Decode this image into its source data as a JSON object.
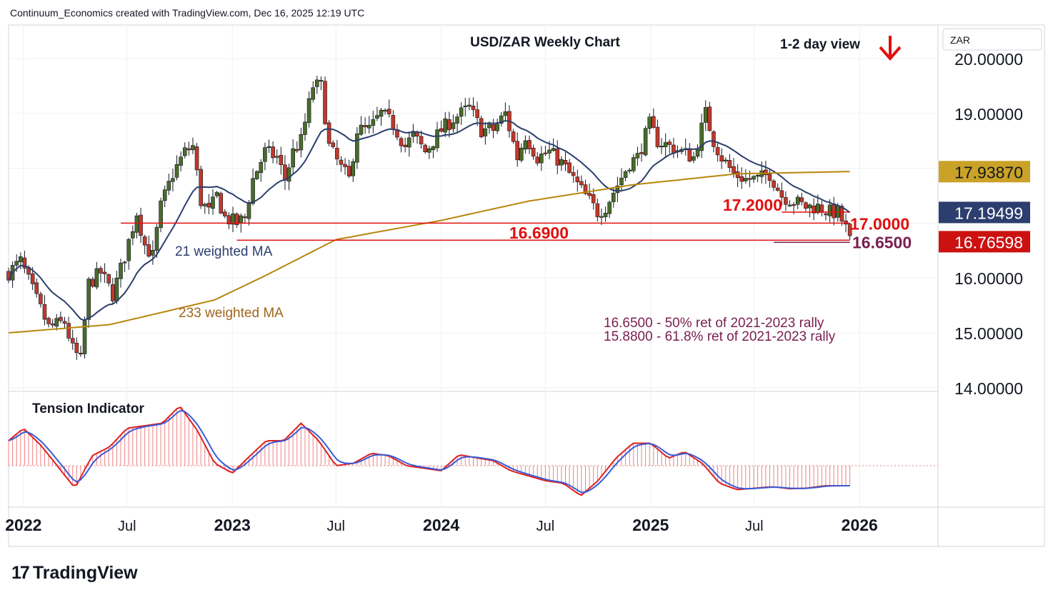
{
  "header": "Continuum_Economics created with TradingView.com, Dec 16, 2025 12:19 UTC",
  "brand": "TradingView",
  "logo_glyph": "17",
  "colors": {
    "up": "#4b6b2a",
    "down": "#c0392b",
    "ma21": "#2c3e6e",
    "ma233": "#b8860b",
    "level": "#e01010",
    "fib": "#7a1f4f",
    "tension_fast": "#e02020",
    "tension_slow": "#3a5bd6"
  },
  "chart_data": {
    "type": "candlestick",
    "title": "USD/ZAR Weekly Chart",
    "view_label": "1-2 day view",
    "view_arrow": "down-arrow-icon",
    "currency_label": "ZAR",
    "y_ticks": [
      "20.00000",
      "19.00000",
      "16.00000",
      "15.00000",
      "14.00000"
    ],
    "y_tick_values": [
      20,
      19,
      16,
      15,
      14
    ],
    "ylim": [
      13.9,
      20.6
    ],
    "x_tick_labels": [
      "2022",
      "Jul",
      "2023",
      "Jul",
      "2024",
      "Jul",
      "2025",
      "Jul",
      "2026"
    ],
    "x_tick_dates": [
      "2022-01-01",
      "2022-07-01",
      "2023-01-01",
      "2023-07-01",
      "2024-01-01",
      "2024-07-01",
      "2025-01-01",
      "2025-07-01",
      "2026-01-01"
    ],
    "x_range": [
      "2021-12-06",
      "2026-05-18"
    ],
    "price_tags": [
      {
        "label": "17.93870",
        "value": 17.9387,
        "style": "ma233"
      },
      {
        "label": "17.19499",
        "value": 17.19499,
        "style": "ma21"
      },
      {
        "label": "16.76598",
        "value": 16.76598,
        "style": "last"
      }
    ],
    "levels": [
      {
        "label": "17.2000",
        "value": 17.2,
        "from": "2025-08-18",
        "to": "2025-12-15"
      },
      {
        "label": "17.0000",
        "value": 17.0,
        "from": "2022-06-20",
        "to": "2025-12-15"
      },
      {
        "label": "16.6900",
        "value": 16.69,
        "from": "2023-01-09",
        "to": "2025-12-15"
      }
    ],
    "fib_line": {
      "label": "16.6500",
      "value": 16.65,
      "from": "2025-08-04",
      "to": "2025-12-15"
    },
    "ma_labels": {
      "ma21": "21 weighted MA",
      "ma233": "233 weighted MA"
    },
    "notes": [
      "16.6500 - 50% ret of 2021-2023 rally",
      "15.8800 - 61.8% ret of 2021-2023 rally"
    ],
    "indicator_title": "Tension Indicator",
    "anchors": [
      [
        "2021-12-06",
        16.1
      ],
      [
        "2021-12-27",
        16.3
      ],
      [
        "2022-01-24",
        15.6
      ],
      [
        "2022-02-14",
        15.1
      ],
      [
        "2022-03-14",
        15.2
      ],
      [
        "2022-03-28",
        14.7
      ],
      [
        "2022-04-11",
        14.5
      ],
      [
        "2022-04-25",
        15.9
      ],
      [
        "2022-05-16",
        16.1
      ],
      [
        "2022-06-06",
        15.7
      ],
      [
        "2022-06-27",
        16.4
      ],
      [
        "2022-07-18",
        17.2
      ],
      [
        "2022-08-01",
        16.6
      ],
      [
        "2022-08-15",
        16.4
      ],
      [
        "2022-08-29",
        17.3
      ],
      [
        "2022-09-19",
        17.9
      ],
      [
        "2022-10-10",
        18.3
      ],
      [
        "2022-10-24",
        18.4
      ],
      [
        "2022-11-07",
        17.4
      ],
      [
        "2022-11-21",
        17.2
      ],
      [
        "2022-12-05",
        17.5
      ],
      [
        "2022-12-19",
        17.1
      ],
      [
        "2023-01-09",
        17.0
      ],
      [
        "2023-01-23",
        17.1
      ],
      [
        "2023-02-06",
        17.8
      ],
      [
        "2023-02-27",
        18.3
      ],
      [
        "2023-03-20",
        18.2
      ],
      [
        "2023-04-03",
        17.8
      ],
      [
        "2023-04-17",
        18.3
      ],
      [
        "2023-05-01",
        18.5
      ],
      [
        "2023-05-22",
        19.5
      ],
      [
        "2023-06-05",
        19.5
      ],
      [
        "2023-06-19",
        18.4
      ],
      [
        "2023-07-10",
        18.0
      ],
      [
        "2023-07-24",
        17.8
      ],
      [
        "2023-08-07",
        18.7
      ],
      [
        "2023-08-28",
        18.7
      ],
      [
        "2023-09-18",
        19.0
      ],
      [
        "2023-10-09",
        18.8
      ],
      [
        "2023-10-30",
        18.4
      ],
      [
        "2023-11-13",
        18.6
      ],
      [
        "2023-12-04",
        18.3
      ],
      [
        "2024-01-01",
        18.7
      ],
      [
        "2024-01-22",
        18.9
      ],
      [
        "2024-02-19",
        19.1
      ],
      [
        "2024-03-11",
        18.7
      ],
      [
        "2024-04-01",
        18.7
      ],
      [
        "2024-04-22",
        19.0
      ],
      [
        "2024-05-13",
        18.2
      ],
      [
        "2024-05-27",
        18.6
      ],
      [
        "2024-06-17",
        18.2
      ],
      [
        "2024-07-08",
        18.3
      ],
      [
        "2024-07-29",
        18.1
      ],
      [
        "2024-08-19",
        17.8
      ],
      [
        "2024-09-09",
        17.5
      ],
      [
        "2024-09-30",
        17.2
      ],
      [
        "2024-10-14",
        17.3
      ],
      [
        "2024-11-04",
        17.7
      ],
      [
        "2024-11-25",
        18.1
      ],
      [
        "2024-12-09",
        18.2
      ],
      [
        "2024-12-30",
        18.8
      ],
      [
        "2025-01-13",
        18.5
      ],
      [
        "2025-02-03",
        18.4
      ],
      [
        "2025-02-24",
        18.3
      ],
      [
        "2025-03-17",
        18.2
      ],
      [
        "2025-04-07",
        19.0
      ],
      [
        "2025-04-21",
        18.5
      ],
      [
        "2025-05-05",
        18.2
      ],
      [
        "2025-05-26",
        17.9
      ],
      [
        "2025-06-16",
        17.8
      ],
      [
        "2025-07-07",
        17.8
      ],
      [
        "2025-07-28",
        17.9
      ],
      [
        "2025-08-18",
        17.5
      ],
      [
        "2025-09-08",
        17.4
      ],
      [
        "2025-09-29",
        17.3
      ],
      [
        "2025-10-20",
        17.3
      ],
      [
        "2025-11-10",
        17.2
      ],
      [
        "2025-11-24",
        17.2
      ],
      [
        "2025-12-08",
        16.9
      ],
      [
        "2025-12-15",
        16.77
      ]
    ],
    "ma233_anchors": [
      [
        "2021-12-06",
        15.0
      ],
      [
        "2022-06-01",
        15.15
      ],
      [
        "2022-12-01",
        15.6
      ],
      [
        "2023-03-01",
        16.05
      ],
      [
        "2023-07-01",
        16.7
      ],
      [
        "2024-01-01",
        17.05
      ],
      [
        "2024-06-01",
        17.4
      ],
      [
        "2024-12-01",
        17.7
      ],
      [
        "2025-06-01",
        17.9
      ],
      [
        "2025-12-15",
        17.94
      ]
    ],
    "tension_anchors": [
      [
        "2021-12-06",
        0.5
      ],
      [
        "2022-01-01",
        0.75
      ],
      [
        "2022-02-01",
        0.4
      ],
      [
        "2022-03-01",
        0.0
      ],
      [
        "2022-04-01",
        -0.45
      ],
      [
        "2022-05-01",
        0.2
      ],
      [
        "2022-06-01",
        0.38
      ],
      [
        "2022-07-01",
        0.75
      ],
      [
        "2022-08-01",
        0.8
      ],
      [
        "2022-09-01",
        0.85
      ],
      [
        "2022-10-01",
        1.2
      ],
      [
        "2022-11-01",
        0.7
      ],
      [
        "2022-12-01",
        0.05
      ],
      [
        "2023-01-01",
        -0.15
      ],
      [
        "2023-02-01",
        0.2
      ],
      [
        "2023-03-01",
        0.5
      ],
      [
        "2023-04-01",
        0.5
      ],
      [
        "2023-05-01",
        0.85
      ],
      [
        "2023-06-01",
        0.5
      ],
      [
        "2023-07-01",
        0.0
      ],
      [
        "2023-08-01",
        0.05
      ],
      [
        "2023-09-01",
        0.25
      ],
      [
        "2023-10-01",
        0.2
      ],
      [
        "2023-11-01",
        0.0
      ],
      [
        "2024-01-01",
        -0.1
      ],
      [
        "2024-02-01",
        0.22
      ],
      [
        "2024-04-01",
        0.1
      ],
      [
        "2024-05-01",
        -0.1
      ],
      [
        "2024-07-01",
        -0.3
      ],
      [
        "2024-08-01",
        -0.35
      ],
      [
        "2024-09-01",
        -0.6
      ],
      [
        "2024-10-01",
        -0.3
      ],
      [
        "2024-11-01",
        0.15
      ],
      [
        "2024-12-01",
        0.45
      ],
      [
        "2025-01-01",
        0.45
      ],
      [
        "2025-02-01",
        0.15
      ],
      [
        "2025-03-01",
        0.28
      ],
      [
        "2025-04-01",
        0.05
      ],
      [
        "2025-05-01",
        -0.35
      ],
      [
        "2025-06-01",
        -0.48
      ],
      [
        "2025-07-01",
        -0.45
      ],
      [
        "2025-08-01",
        -0.42
      ],
      [
        "2025-09-01",
        -0.46
      ],
      [
        "2025-10-01",
        -0.45
      ],
      [
        "2025-11-01",
        -0.4
      ],
      [
        "2025-12-15",
        -0.4
      ]
    ]
  }
}
